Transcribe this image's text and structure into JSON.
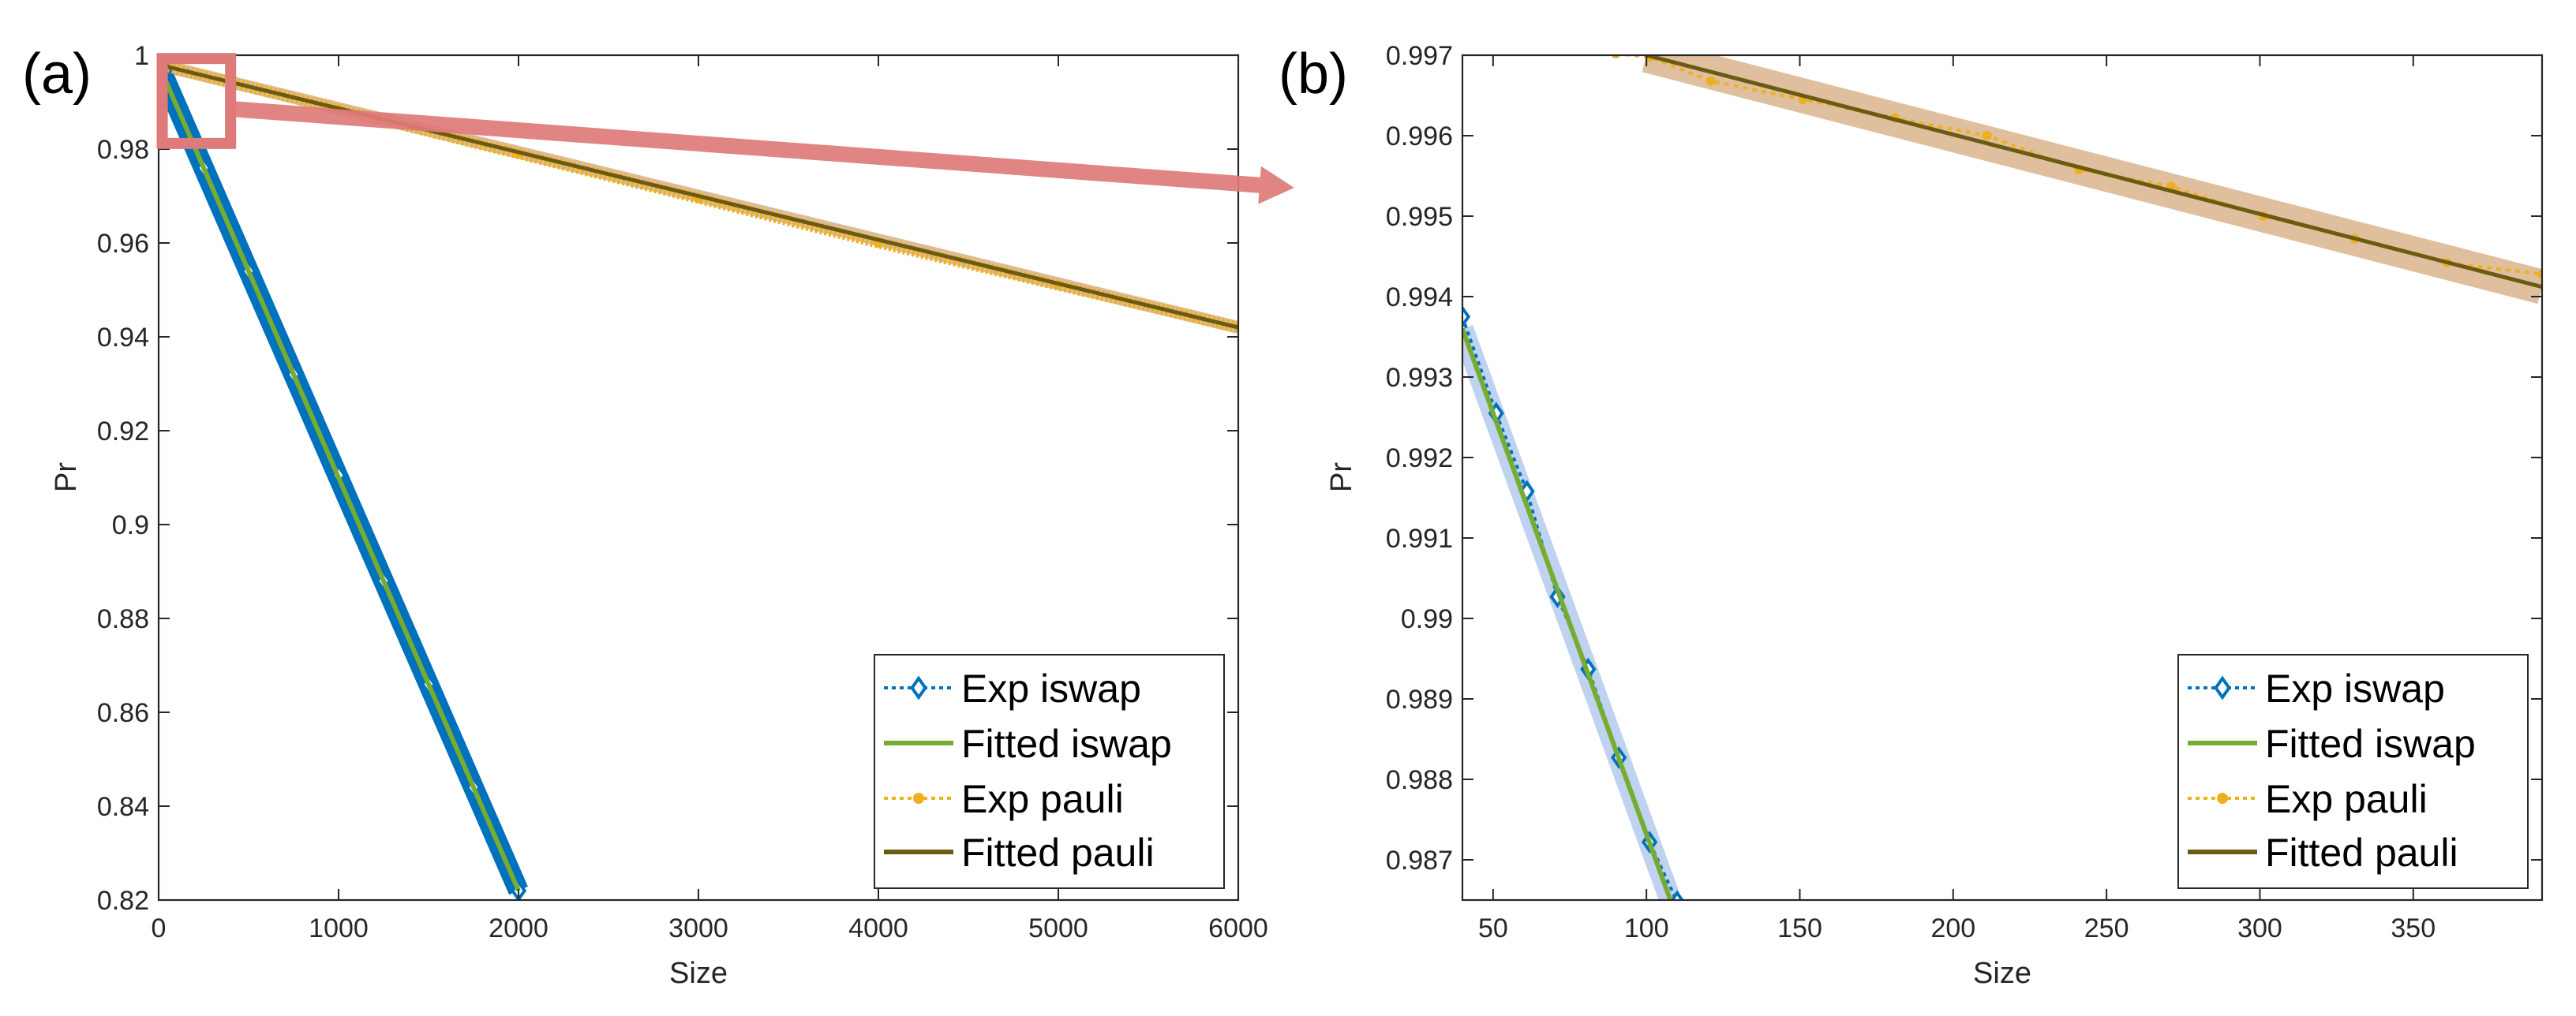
{
  "colors": {
    "exp_iswap": "#0072BD",
    "exp_iswap_band": "#A9C4EB",
    "fitted_iswap": "#77AC30",
    "exp_pauli": "#EDB120",
    "fitted_pauli": "#6B5A12",
    "pauli_band": "#D9B48C",
    "zoom_arrow": "#DE7A7A"
  },
  "chart_data": [
    {
      "panel_label": "(a)",
      "type": "line",
      "xlabel": "Size",
      "ylabel": "Pr",
      "xlim": [
        0,
        6000
      ],
      "ylim": [
        0.82,
        1.0
      ],
      "xticks": [
        0,
        1000,
        2000,
        3000,
        4000,
        5000,
        6000
      ],
      "xtick_labels": [
        "0",
        "1000",
        "2000",
        "3000",
        "4000",
        "5000",
        "6000"
      ],
      "yticks": [
        0.82,
        0.84,
        0.86,
        0.88,
        0.9,
        0.92,
        0.94,
        0.96,
        0.98,
        1.0
      ],
      "ytick_labels": [
        "0.82",
        "0.84",
        "0.86",
        "0.88",
        "0.9",
        "0.92",
        "0.94",
        "0.96",
        "0.98",
        "1"
      ],
      "series": [
        {
          "name": "Exp iswap",
          "style": "dotted-diamond",
          "x": [
            0,
            250,
            500,
            750,
            1000,
            1250,
            1500,
            1750,
            2000
          ],
          "y": [
            0.998,
            0.976,
            0.954,
            0.932,
            0.9105,
            0.888,
            0.866,
            0.844,
            0.822
          ]
        },
        {
          "name": "Fitted iswap",
          "style": "solid",
          "x": [
            0,
            2000
          ],
          "y": [
            0.998,
            0.822
          ]
        },
        {
          "name": "Exp pauli",
          "style": "dotted-dot",
          "x": [
            0,
            1000,
            2000,
            3000,
            4000,
            5000,
            6000
          ],
          "y": [
            0.998,
            0.9885,
            0.979,
            0.9695,
            0.96,
            0.951,
            0.942
          ]
        },
        {
          "name": "Fitted pauli",
          "style": "solid",
          "x": [
            0,
            6000
          ],
          "y": [
            0.998,
            0.942
          ]
        }
      ],
      "legend_location": "bottom-right",
      "annotations": [
        "zoom box near (0–400, 0.98–1.0) with arrow to panel (b)"
      ]
    },
    {
      "panel_label": "(b)",
      "type": "line",
      "xlabel": "Size",
      "ylabel": "Pr",
      "xlim": [
        40,
        392
      ],
      "ylim": [
        0.9865,
        0.997
      ],
      "xticks": [
        50,
        100,
        150,
        200,
        250,
        300,
        350
      ],
      "xtick_labels": [
        "50",
        "100",
        "150",
        "200",
        "250",
        "300",
        "350"
      ],
      "yticks": [
        0.987,
        0.988,
        0.989,
        0.99,
        0.991,
        0.992,
        0.993,
        0.994,
        0.995,
        0.996,
        0.997
      ],
      "ytick_labels": [
        "0.987",
        "0.988",
        "0.989",
        "0.99",
        "0.991",
        "0.992",
        "0.993",
        "0.994",
        "0.995",
        "0.996",
        "0.997"
      ],
      "series": [
        {
          "name": "Exp iswap",
          "style": "dotted-diamond",
          "x": [
            40,
            51,
            61,
            71,
            81,
            91,
            101,
            110
          ],
          "y": [
            0.99375,
            0.99255,
            0.99158,
            0.99027,
            0.98937,
            0.98827,
            0.98722,
            0.98648
          ]
        },
        {
          "name": "Fitted iswap",
          "style": "solid",
          "x": [
            40,
            108
          ],
          "y": [
            0.9936,
            0.98648
          ]
        },
        {
          "name": "Exp pauli",
          "style": "dotted-dot",
          "x": [
            90,
            101,
            121,
            151,
            181,
            211,
            241,
            271,
            301,
            331,
            361,
            392
          ],
          "y": [
            0.99702,
            0.99698,
            0.99668,
            0.99645,
            0.99622,
            0.996,
            0.99558,
            0.99537,
            0.995,
            0.99472,
            0.99442,
            0.99428
          ]
        },
        {
          "name": "Fitted pauli",
          "style": "solid",
          "x": [
            100,
            392
          ],
          "y": [
            0.997,
            0.99412
          ]
        }
      ],
      "legend_location": "bottom-right"
    }
  ]
}
